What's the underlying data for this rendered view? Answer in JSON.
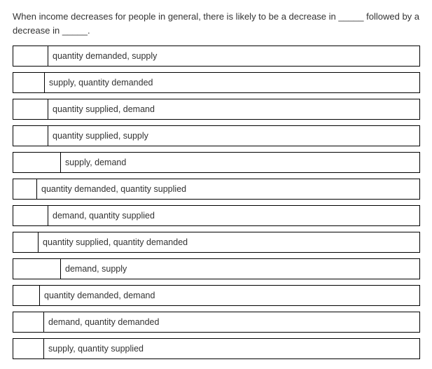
{
  "question": "When income decreases for people in general, there is likely to be a decrease in _____ followed by a decrease in _____.",
  "options": [
    {
      "label": "quantity demanded, supply",
      "indent": 50
    },
    {
      "label": "supply, quantity demanded",
      "indent": 45
    },
    {
      "label": "quantity supplied, demand",
      "indent": 50
    },
    {
      "label": "quantity supplied, supply",
      "indent": 50
    },
    {
      "label": "supply, demand",
      "indent": 68
    },
    {
      "label": "quantity demanded, quantity supplied",
      "indent": 34
    },
    {
      "label": "demand, quantity supplied",
      "indent": 50
    },
    {
      "label": "quantity supplied, quantity demanded",
      "indent": 36
    },
    {
      "label": "demand, supply",
      "indent": 68
    },
    {
      "label": "quantity demanded, demand",
      "indent": 38
    },
    {
      "label": "demand, quantity demanded",
      "indent": 44
    },
    {
      "label": "supply, quantity supplied",
      "indent": 44
    }
  ]
}
